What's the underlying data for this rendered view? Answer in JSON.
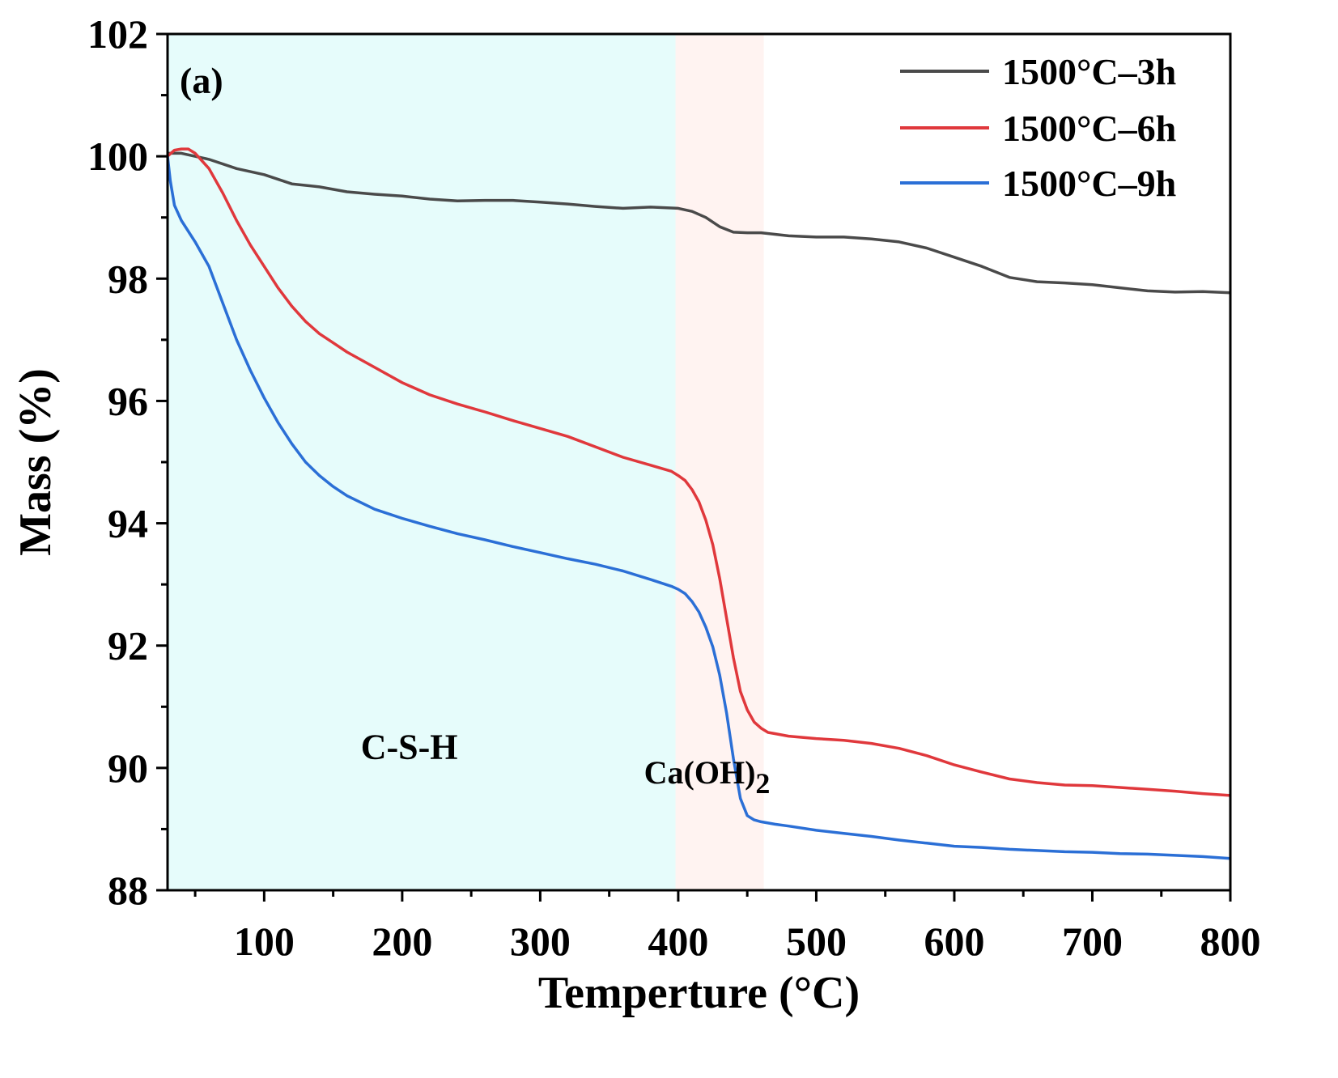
{
  "chart_data": {
    "type": "line",
    "panel_label": "(a)",
    "xlabel": "Temperture (°C)",
    "ylabel": "Mass (%)",
    "xlim": [
      30,
      800
    ],
    "ylim": [
      88,
      102
    ],
    "x_ticks": [
      100,
      200,
      300,
      400,
      500,
      600,
      700,
      800
    ],
    "y_ticks": [
      88,
      90,
      92,
      94,
      96,
      98,
      100,
      102
    ],
    "x_tick_labels": [
      "100",
      "200",
      "300",
      "400",
      "500",
      "600",
      "700",
      "800"
    ],
    "y_tick_labels": [
      "88",
      "90",
      "92",
      "94",
      "96",
      "98",
      "100",
      "102"
    ],
    "legend_position": "top-right",
    "regions": [
      {
        "name": "csh",
        "label": "C-S-H",
        "x_range": [
          30,
          398
        ],
        "color": "#e6fcfb",
        "label_at": [
          170,
          90.15
        ]
      },
      {
        "name": "caoh2",
        "label": "Ca(OH)",
        "label_subscript": "2",
        "x_range": [
          398,
          462
        ],
        "color": "#fff3f1",
        "label_at": [
          428,
          89.75
        ]
      }
    ],
    "series": [
      {
        "name": "1500°C–3h",
        "color": "#4a4a4a",
        "x": [
          30,
          40,
          60,
          80,
          100,
          120,
          140,
          160,
          180,
          200,
          220,
          240,
          260,
          280,
          300,
          320,
          340,
          360,
          380,
          400,
          410,
          420,
          430,
          440,
          450,
          460,
          480,
          500,
          520,
          540,
          560,
          580,
          600,
          620,
          640,
          660,
          680,
          700,
          720,
          740,
          760,
          780,
          800
        ],
        "y": [
          100.05,
          100.05,
          99.95,
          99.8,
          99.7,
          99.55,
          99.5,
          99.42,
          99.38,
          99.35,
          99.3,
          99.27,
          99.28,
          99.28,
          99.25,
          99.22,
          99.18,
          99.15,
          99.17,
          99.15,
          99.1,
          99.0,
          98.85,
          98.76,
          98.75,
          98.75,
          98.7,
          98.68,
          98.68,
          98.65,
          98.6,
          98.5,
          98.35,
          98.2,
          98.02,
          97.95,
          97.93,
          97.9,
          97.85,
          97.8,
          97.78,
          97.79,
          97.77
        ]
      },
      {
        "name": "1500°C–6h",
        "color": "#e0383c",
        "x": [
          30,
          35,
          40,
          45,
          50,
          60,
          70,
          80,
          90,
          100,
          110,
          120,
          130,
          140,
          150,
          160,
          180,
          200,
          220,
          240,
          260,
          280,
          300,
          320,
          340,
          360,
          380,
          395,
          400,
          405,
          410,
          415,
          420,
          425,
          430,
          435,
          440,
          445,
          450,
          455,
          460,
          465,
          470,
          480,
          500,
          520,
          540,
          560,
          580,
          600,
          620,
          640,
          660,
          680,
          700,
          720,
          740,
          760,
          780,
          800
        ],
        "y": [
          100.0,
          100.1,
          100.12,
          100.12,
          100.05,
          99.8,
          99.4,
          98.95,
          98.55,
          98.2,
          97.85,
          97.55,
          97.3,
          97.1,
          96.95,
          96.8,
          96.55,
          96.3,
          96.1,
          95.95,
          95.82,
          95.68,
          95.55,
          95.42,
          95.25,
          95.08,
          94.95,
          94.85,
          94.78,
          94.7,
          94.55,
          94.35,
          94.05,
          93.65,
          93.1,
          92.45,
          91.8,
          91.25,
          90.95,
          90.75,
          90.65,
          90.58,
          90.56,
          90.52,
          90.48,
          90.45,
          90.4,
          90.32,
          90.2,
          90.05,
          89.93,
          89.82,
          89.76,
          89.72,
          89.71,
          89.68,
          89.65,
          89.62,
          89.58,
          89.55
        ]
      },
      {
        "name": "1500°C–9h",
        "color": "#2b6fd6",
        "x": [
          30,
          32,
          35,
          40,
          50,
          60,
          70,
          80,
          90,
          100,
          110,
          120,
          130,
          140,
          150,
          160,
          180,
          200,
          220,
          240,
          260,
          280,
          300,
          320,
          340,
          360,
          380,
          395,
          400,
          405,
          410,
          415,
          420,
          425,
          430,
          435,
          440,
          445,
          450,
          455,
          460,
          470,
          480,
          500,
          520,
          540,
          560,
          580,
          600,
          620,
          640,
          660,
          680,
          700,
          720,
          740,
          760,
          780,
          800
        ],
        "y": [
          100.0,
          99.6,
          99.2,
          98.95,
          98.6,
          98.2,
          97.6,
          97.0,
          96.5,
          96.05,
          95.65,
          95.3,
          95.0,
          94.78,
          94.6,
          94.45,
          94.23,
          94.08,
          93.95,
          93.83,
          93.73,
          93.62,
          93.52,
          93.42,
          93.33,
          93.22,
          93.08,
          92.97,
          92.92,
          92.85,
          92.72,
          92.55,
          92.3,
          91.98,
          91.52,
          90.9,
          90.15,
          89.5,
          89.22,
          89.15,
          89.12,
          89.08,
          89.05,
          88.98,
          88.93,
          88.88,
          88.82,
          88.77,
          88.72,
          88.7,
          88.67,
          88.65,
          88.63,
          88.62,
          88.6,
          88.59,
          88.57,
          88.55,
          88.52
        ]
      }
    ]
  }
}
